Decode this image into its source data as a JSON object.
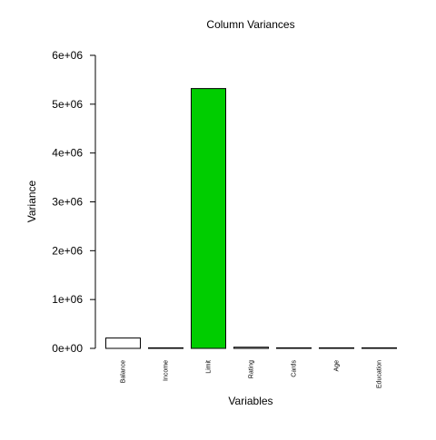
{
  "chart_data": {
    "type": "bar",
    "title": "Column Variances",
    "xlabel": "Variables",
    "ylabel": "Variance",
    "categories": [
      "Balance",
      "Income",
      "Limit",
      "Rating",
      "Cards",
      "Age",
      "Education"
    ],
    "values": [
      212000,
      1240,
      5320000,
      23900,
      1.9,
      300,
      9.7
    ],
    "ylim": [
      0,
      6000000
    ],
    "yticks": [
      0,
      1000000,
      2000000,
      3000000,
      4000000,
      5000000,
      6000000
    ],
    "ytick_labels": [
      "0e+00",
      "1e+06",
      "2e+06",
      "3e+06",
      "4e+06",
      "5e+06",
      "6e+06"
    ],
    "highlight_category": "Limit",
    "highlight_color": "#00cd00",
    "default_bar_color": "#ffffff",
    "bar_outline_color": "#000000",
    "grid": false,
    "legend": "none"
  }
}
